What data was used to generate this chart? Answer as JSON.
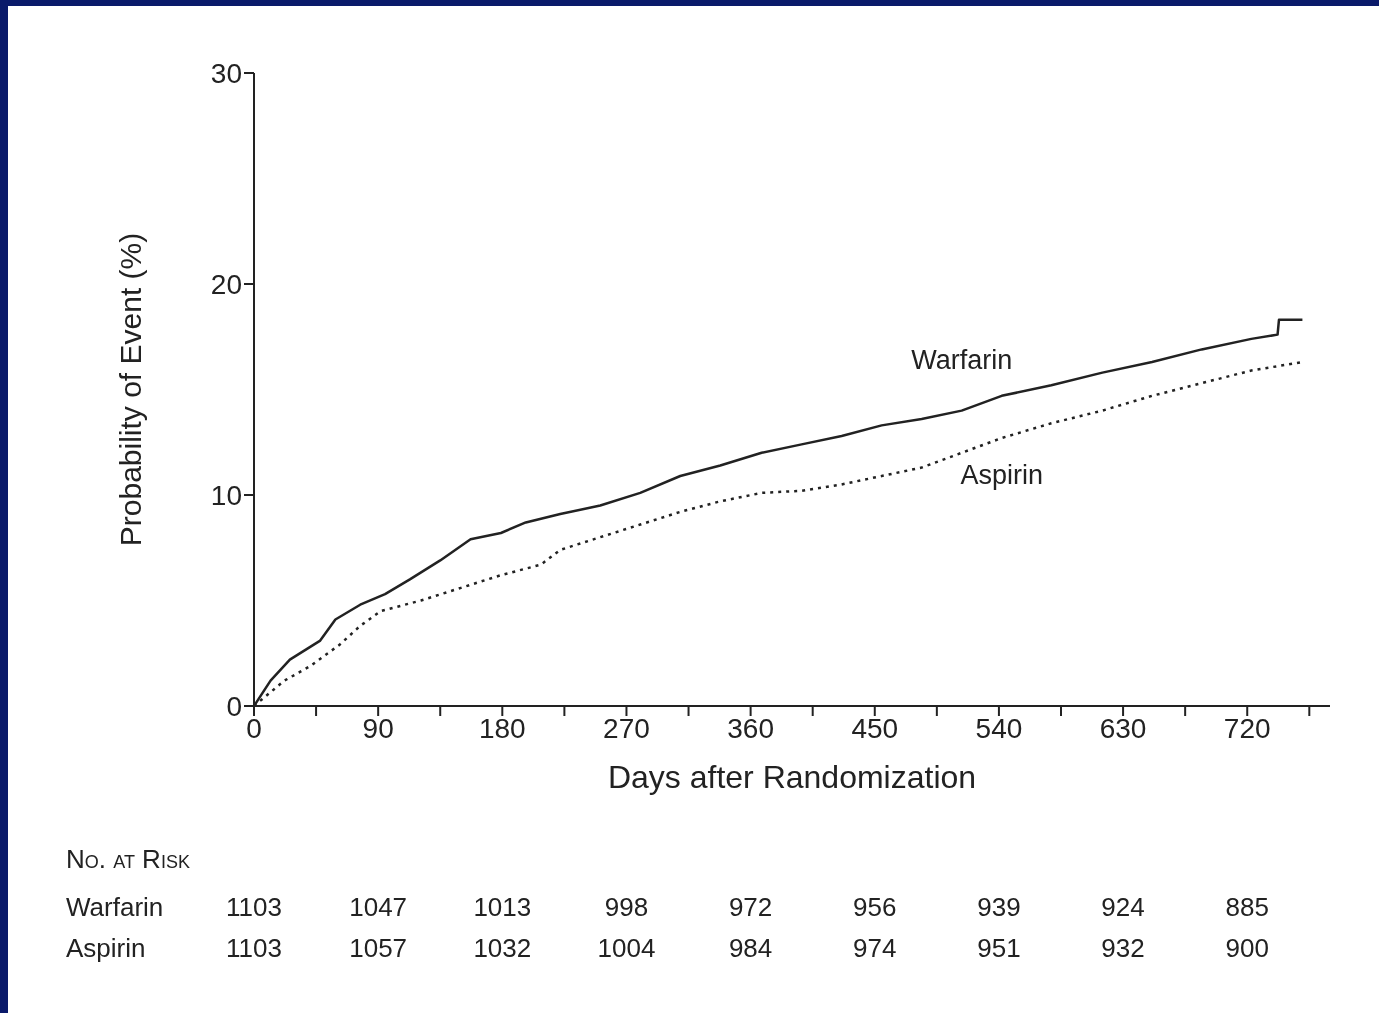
{
  "chart_data": {
    "type": "line",
    "xlabel": "Days after Randomization",
    "ylabel": "Probability of Event (%)",
    "xlim": [
      0,
      780
    ],
    "ylim": [
      0,
      30
    ],
    "xticks": [
      0,
      {
        "value": 45,
        "label": null
      },
      90,
      {
        "value": 135,
        "label": null
      },
      180,
      {
        "value": 225,
        "label": null
      },
      270,
      {
        "value": 315,
        "label": null
      },
      360,
      {
        "value": 405,
        "label": null
      },
      450,
      {
        "value": 495,
        "label": null
      },
      540,
      {
        "value": 585,
        "label": null
      },
      630,
      {
        "value": 675,
        "label": null
      },
      720,
      {
        "value": 765,
        "label": null
      }
    ],
    "yticks": [
      0,
      10,
      20,
      30
    ],
    "marker": "none",
    "series": [
      {
        "name": "Warfarin",
        "color": "#222222",
        "line_style": "solid",
        "x": [
          0,
          12,
          26,
          48,
          59,
          77,
          95,
          113,
          135,
          157,
          179,
          197,
          222,
          251,
          280,
          309,
          338,
          368,
          397,
          426,
          455,
          484,
          513,
          542,
          578,
          615,
          651,
          687,
          723,
          742,
          743,
          760
        ],
        "values": [
          0,
          1.2,
          2.2,
          3.1,
          4.1,
          4.8,
          5.3,
          6.0,
          6.9,
          7.9,
          8.2,
          8.7,
          9.1,
          9.5,
          10.1,
          10.9,
          11.4,
          12.0,
          12.4,
          12.8,
          13.3,
          13.6,
          14.0,
          14.7,
          15.2,
          15.8,
          16.3,
          16.9,
          17.4,
          17.6,
          18.3,
          18.3
        ]
      },
      {
        "name": "Aspirin",
        "color": "#222222",
        "line_style": "dotted",
        "x": [
          0,
          22,
          41,
          62,
          77,
          92,
          121,
          150,
          179,
          208,
          222,
          251,
          280,
          309,
          338,
          368,
          397,
          426,
          455,
          484,
          513,
          542,
          578,
          615,
          651,
          687,
          723,
          760
        ],
        "values": [
          0,
          1.2,
          1.9,
          2.9,
          3.8,
          4.5,
          5.0,
          5.6,
          6.2,
          6.7,
          7.4,
          8.0,
          8.6,
          9.2,
          9.7,
          10.1,
          10.2,
          10.5,
          10.9,
          11.3,
          12.0,
          12.7,
          13.4,
          14.0,
          14.7,
          15.3,
          15.9,
          16.3
        ]
      }
    ],
    "annotations": [
      "No. at Risk",
      "Warfarin 1103 1047 1013 998 972 956 939 924 885",
      "Aspirin 1103 1057 1032 1004 984 974 951 932 900"
    ]
  }
}
